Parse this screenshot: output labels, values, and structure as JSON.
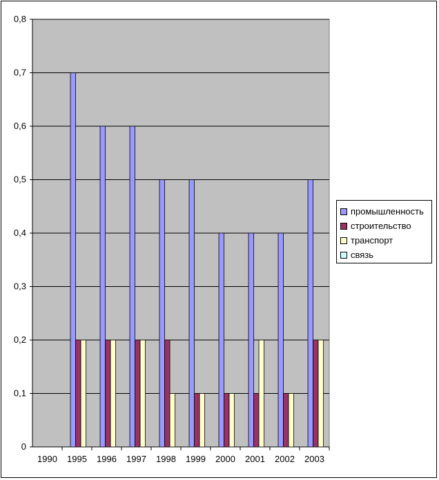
{
  "chart_data": {
    "type": "bar",
    "categories": [
      "1990",
      "1995",
      "1996",
      "1997",
      "1998",
      "1999",
      "2000",
      "2001",
      "2002",
      "2003"
    ],
    "series": [
      {
        "name": "промышленность",
        "color": "#9999ff",
        "values": [
          0,
          0.7,
          0.6,
          0.6,
          0.5,
          0.5,
          0.4,
          0.4,
          0.4,
          0.5
        ]
      },
      {
        "name": "строительство",
        "color": "#993366",
        "values": [
          0,
          0.2,
          0.2,
          0.2,
          0.2,
          0.1,
          0.1,
          0.1,
          0.1,
          0.2
        ]
      },
      {
        "name": "транспорт",
        "color": "#ffffcc",
        "values": [
          0,
          0.2,
          0.2,
          0.2,
          0.1,
          0.1,
          0.1,
          0.2,
          0.1,
          0.2
        ]
      },
      {
        "name": "связь",
        "color": "#ccffff",
        "values": [
          0,
          0,
          0,
          0,
          0,
          0,
          0,
          0,
          0,
          0
        ]
      }
    ],
    "y_ticks": [
      "0",
      "0,1",
      "0,2",
      "0,3",
      "0,4",
      "0,5",
      "0,6",
      "0,7",
      "0,8"
    ],
    "ylim": [
      0,
      0.8
    ],
    "plot_background": "#c0c0c0",
    "grid": true,
    "legend_position": "right"
  }
}
